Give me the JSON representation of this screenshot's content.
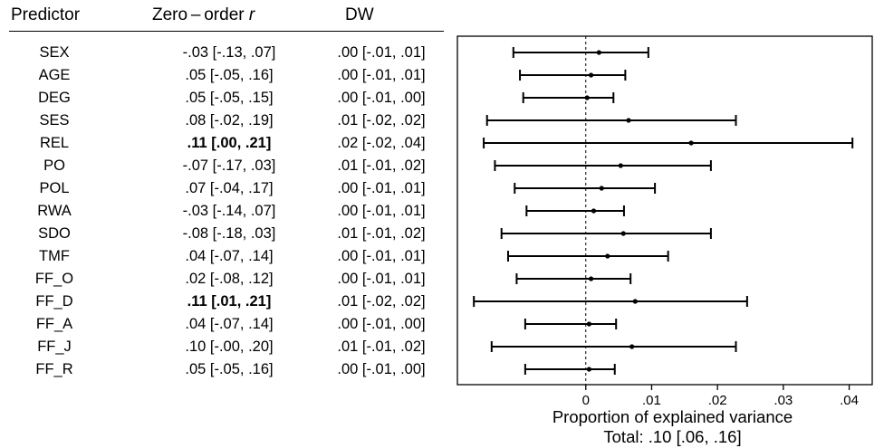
{
  "table": {
    "headers": {
      "predictor": "Predictor",
      "zero_prefix": "Zero – order ",
      "zero_r": "r",
      "dw": "DW"
    },
    "rows": [
      {
        "predictor": "SEX",
        "zero_order": "-.03 [-.13, .07]",
        "dw": ".00 [-.01, .01]",
        "bold": false
      },
      {
        "predictor": "AGE",
        "zero_order": ".05 [-.05, .16]",
        "dw": ".00 [-.01, .01]",
        "bold": false
      },
      {
        "predictor": "DEG",
        "zero_order": ".05 [-.05, .15]",
        "dw": ".00 [-.01, .00]",
        "bold": false
      },
      {
        "predictor": "SES",
        "zero_order": ".08 [-.02, .19]",
        "dw": ".01 [-.02, .02]",
        "bold": false
      },
      {
        "predictor": "REL",
        "zero_order": ".11 [.00, .21]",
        "dw": ".02 [-.02, .04]",
        "bold": true
      },
      {
        "predictor": "PO",
        "zero_order": "-.07 [-.17, .03]",
        "dw": ".01 [-.01, .02]",
        "bold": false
      },
      {
        "predictor": "POL",
        "zero_order": ".07 [-.04, .17]",
        "dw": ".00 [-.01, .01]",
        "bold": false
      },
      {
        "predictor": "RWA",
        "zero_order": "-.03 [-.14, .07]",
        "dw": ".00 [-.01, .01]",
        "bold": false
      },
      {
        "predictor": "SDO",
        "zero_order": "-.08 [-.18, .03]",
        "dw": ".01 [-.01, .02]",
        "bold": false
      },
      {
        "predictor": "TMF",
        "zero_order": ".04 [-.07, .14]",
        "dw": ".00 [-.01, .01]",
        "bold": false
      },
      {
        "predictor": "FF_O",
        "zero_order": ".02 [-.08, .12]",
        "dw": ".00 [-.01, .01]",
        "bold": false
      },
      {
        "predictor": "FF_D",
        "zero_order": ".11 [.01, .21]",
        "dw": ".01 [-.02, .02]",
        "bold": true
      },
      {
        "predictor": "FF_A",
        "zero_order": ".04 [-.07, .14]",
        "dw": ".00 [-.01, .00]",
        "bold": false
      },
      {
        "predictor": "FF_J",
        "zero_order": ".10 [-.00, .20]",
        "dw": ".01 [-.01, .02]",
        "bold": false
      },
      {
        "predictor": "FF_R",
        "zero_order": ".05 [-.05, .16]",
        "dw": ".00 [-.01, .00]",
        "bold": false
      }
    ]
  },
  "chart_data": {
    "type": "scatter",
    "subtype": "forest-plot-with-error-bars",
    "categories": [
      "SEX",
      "AGE",
      "DEG",
      "SES",
      "REL",
      "PO",
      "POL",
      "RWA",
      "SDO",
      "TMF",
      "FF_O",
      "FF_D",
      "FF_A",
      "FF_J",
      "FF_R"
    ],
    "series": [
      {
        "points": [
          {
            "category": "SEX",
            "estimate": 0.002,
            "lower": -0.011,
            "upper": 0.0095
          },
          {
            "category": "AGE",
            "estimate": 0.0008,
            "lower": -0.01,
            "upper": 0.006
          },
          {
            "category": "DEG",
            "estimate": 0.0002,
            "lower": -0.0095,
            "upper": 0.0042
          },
          {
            "category": "SES",
            "estimate": 0.0065,
            "lower": -0.015,
            "upper": 0.0228
          },
          {
            "category": "REL",
            "estimate": 0.016,
            "lower": -0.0155,
            "upper": 0.0405
          },
          {
            "category": "PO",
            "estimate": 0.0053,
            "lower": -0.0138,
            "upper": 0.019
          },
          {
            "category": "POL",
            "estimate": 0.0024,
            "lower": -0.0108,
            "upper": 0.0105
          },
          {
            "category": "RWA",
            "estimate": 0.0012,
            "lower": -0.009,
            "upper": 0.0058
          },
          {
            "category": "SDO",
            "estimate": 0.0057,
            "lower": -0.0128,
            "upper": 0.019
          },
          {
            "category": "TMF",
            "estimate": 0.0033,
            "lower": -0.0118,
            "upper": 0.0125
          },
          {
            "category": "FF_O",
            "estimate": 0.0008,
            "lower": -0.0105,
            "upper": 0.0068
          },
          {
            "category": "FF_D",
            "estimate": 0.0075,
            "lower": -0.017,
            "upper": 0.0245
          },
          {
            "category": "FF_A",
            "estimate": 0.0005,
            "lower": -0.0092,
            "upper": 0.0046
          },
          {
            "category": "FF_J",
            "estimate": 0.007,
            "lower": -0.0143,
            "upper": 0.0228
          },
          {
            "category": "FF_R",
            "estimate": 0.0005,
            "lower": -0.0092,
            "upper": 0.0044
          }
        ]
      }
    ],
    "xlim": [
      -0.0195,
      0.0435
    ],
    "xticks": [
      0,
      0.01,
      0.02,
      0.03,
      0.04
    ],
    "xtick_labels": [
      "0",
      ".01",
      ".02",
      ".03",
      ".04"
    ],
    "reference_line": 0,
    "xlabel": "Proportion of explained variance",
    "subtitle": "Total: .10 [.06, .16]",
    "grid": false
  }
}
